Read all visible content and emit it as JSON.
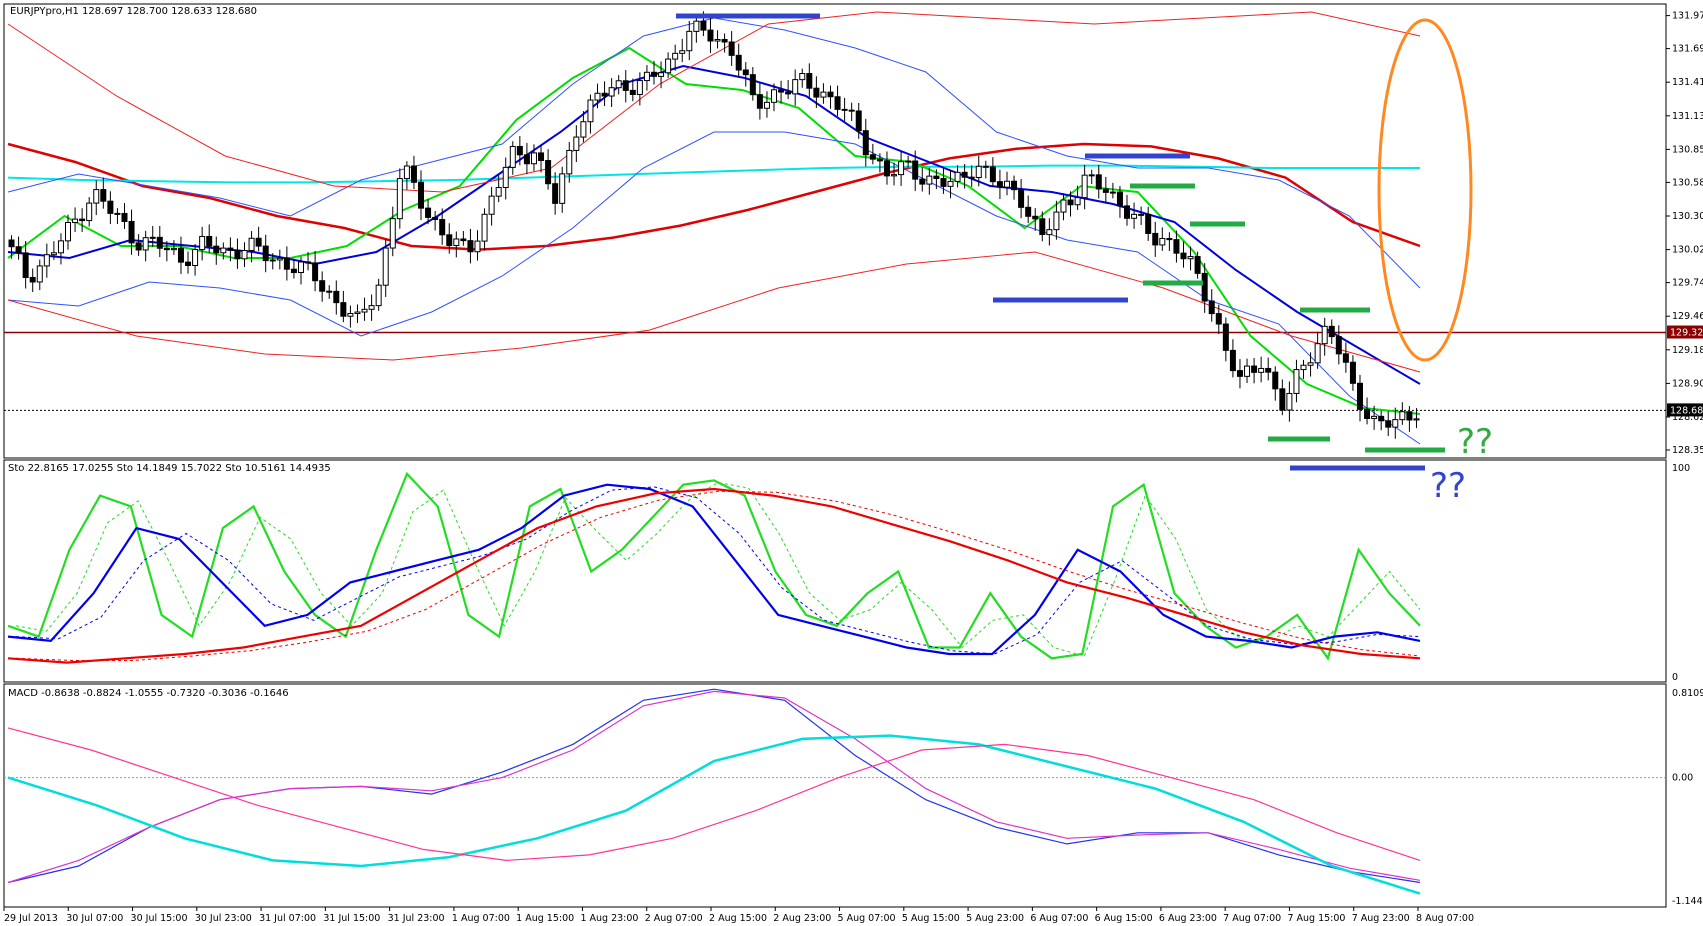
{
  "header": {
    "main": "EURJPYpro,H1  128.697 128.700 128.633 128.680",
    "sto": "Sto 22.8165 17.0255  Sto 14.1849 15.7022  Sto 10.5161 14.4935",
    "macd": "MACD -0.8638 -0.8824 -1.0555 -0.7320 -0.3036 -0.1646"
  },
  "chart_data": [
    {
      "type": "candlestick",
      "symbol": "EURJPYpro",
      "timeframe": "H1",
      "ohlc_last": [
        128.697,
        128.7,
        128.633,
        128.68
      ],
      "ylim": [
        128.3,
        132.05
      ],
      "yticks": [
        "131.970",
        "131.695",
        "131.415",
        "131.135",
        "130.855",
        "130.580",
        "130.300",
        "130.020",
        "129.745",
        "129.465",
        "129.185",
        "128.905",
        "128.625",
        "128.350"
      ],
      "price_levels": [
        {
          "label": "129.329",
          "value": 129.329,
          "color": "#8b0000"
        },
        {
          "label": "128.680",
          "value": 128.68,
          "color": "#000000"
        }
      ],
      "close_path": [
        130.1,
        129.8,
        129.95,
        130.2,
        130.5,
        130.3,
        130.1,
        130.05,
        129.95,
        130.05,
        130.0,
        130.05,
        129.95,
        129.9,
        129.8,
        129.6,
        129.4,
        129.75,
        130.7,
        130.4,
        130.1,
        130.0,
        130.4,
        130.8,
        130.85,
        130.4,
        131.1,
        131.3,
        131.4,
        131.4,
        131.55,
        131.85,
        131.8,
        131.7,
        131.2,
        131.35,
        131.4,
        131.35,
        131.2,
        130.9,
        130.65,
        130.7,
        130.6,
        130.55,
        130.75,
        130.55,
        130.5,
        130.1,
        130.4,
        130.6,
        130.5,
        130.35,
        130.1,
        130.1,
        129.8,
        129.4,
        128.9,
        129.1,
        128.7,
        129.1,
        129.4,
        128.9,
        128.6,
        128.55,
        128.7
      ],
      "indicators": [
        {
          "name": "red-ma-thick",
          "color": "#e00000",
          "values": [
            130.9,
            130.75,
            130.55,
            130.45,
            130.3,
            130.2,
            130.05,
            130.02,
            130.05,
            130.12,
            130.22,
            130.35,
            130.5,
            130.65,
            130.78,
            130.86,
            130.9,
            130.88,
            130.78,
            130.62,
            130.25,
            130.05
          ]
        },
        {
          "name": "cyan-ma",
          "color": "#00e5e5",
          "values": [
            130.62,
            130.6,
            130.59,
            130.58,
            130.58,
            130.59,
            130.6,
            130.62,
            130.64,
            130.66,
            130.68,
            130.7,
            130.71,
            130.71,
            130.72,
            130.72,
            130.71,
            130.7,
            130.7,
            130.7
          ]
        },
        {
          "name": "green-ma",
          "color": "#00dd00",
          "values": [
            129.95,
            130.3,
            130.05,
            130.05,
            129.95,
            129.95,
            130.05,
            130.35,
            130.55,
            131.1,
            131.45,
            131.7,
            131.4,
            131.35,
            131.2,
            130.8,
            130.75,
            130.55,
            130.2,
            130.55,
            130.5,
            130.0,
            129.3,
            128.9,
            128.7,
            128.65
          ]
        },
        {
          "name": "blue-ma",
          "color": "#0000dd",
          "values": [
            130.0,
            129.95,
            130.1,
            130.05,
            130.0,
            129.9,
            130.0,
            130.3,
            130.65,
            131.0,
            131.4,
            131.55,
            131.45,
            131.3,
            130.95,
            130.75,
            130.55,
            130.5,
            130.4,
            130.25,
            129.85,
            129.5,
            129.2,
            128.9
          ]
        },
        {
          "name": "bollinger-blue-upper",
          "color": "#3050ff",
          "values": [
            130.5,
            130.65,
            130.55,
            130.45,
            130.3,
            130.6,
            130.75,
            130.9,
            131.4,
            131.8,
            131.95,
            131.85,
            131.7,
            131.5,
            131.0,
            130.8,
            130.7,
            130.7,
            130.6,
            130.3,
            129.7
          ]
        },
        {
          "name": "bollinger-blue-lower",
          "color": "#3050ff",
          "values": [
            129.6,
            129.55,
            129.75,
            129.7,
            129.6,
            129.3,
            129.5,
            129.8,
            130.2,
            130.7,
            131.0,
            131.0,
            130.9,
            130.6,
            130.3,
            130.1,
            130.0,
            129.6,
            129.4,
            128.8,
            128.4
          ]
        },
        {
          "name": "bollinger-red-upper",
          "color": "#ee2222",
          "values": [
            131.9,
            131.3,
            130.8,
            130.55,
            130.5,
            130.7,
            131.4,
            131.9,
            132.0,
            131.95,
            131.9,
            131.95,
            132.0,
            131.8
          ]
        },
        {
          "name": "bollinger-red-lower",
          "color": "#ee2222",
          "values": [
            129.6,
            129.3,
            129.15,
            129.1,
            129.2,
            129.35,
            129.7,
            129.9,
            130.0,
            129.7,
            129.3,
            129.0
          ]
        }
      ]
    },
    {
      "type": "line",
      "name": "Stochastic",
      "ylim": [
        0,
        100
      ],
      "yticks": [
        "100",
        "0"
      ],
      "series": [
        {
          "name": "green-sto",
          "color": "#22dd22",
          "values": [
            25,
            20,
            60,
            85,
            80,
            30,
            20,
            70,
            80,
            50,
            30,
            20,
            60,
            95,
            80,
            30,
            20,
            80,
            88,
            50,
            60,
            75,
            90,
            92,
            85,
            50,
            30,
            25,
            40,
            50,
            15,
            15,
            40,
            20,
            10,
            12,
            80,
            90,
            40,
            25,
            15,
            20,
            30,
            10,
            60,
            40,
            25
          ]
        },
        {
          "name": "blue-sto",
          "color": "#0000ee",
          "values": [
            20,
            18,
            40,
            70,
            65,
            45,
            25,
            30,
            45,
            50,
            55,
            60,
            70,
            85,
            90,
            88,
            80,
            55,
            30,
            25,
            20,
            15,
            12,
            12,
            30,
            60,
            50,
            30,
            20,
            18,
            15,
            20,
            22,
            18
          ]
        },
        {
          "name": "red-sto-slow",
          "color": "#ee0000",
          "values": [
            10,
            8,
            10,
            12,
            15,
            20,
            25,
            40,
            55,
            70,
            80,
            86,
            88,
            85,
            80,
            72,
            64,
            55,
            45,
            38,
            30,
            22,
            16,
            12,
            10
          ]
        }
      ]
    },
    {
      "type": "line",
      "name": "MACD",
      "ylim": [
        -1.1444,
        0.8109
      ],
      "yticks": [
        "0.8109",
        "0.00",
        "-1.1444"
      ],
      "series": [
        {
          "name": "macd-blue",
          "color": "#2233ee",
          "values": [
            -0.95,
            -0.8,
            -0.45,
            -0.2,
            -0.1,
            -0.08,
            -0.15,
            0.05,
            0.3,
            0.7,
            0.8,
            0.7,
            0.2,
            -0.2,
            -0.45,
            -0.6,
            -0.5,
            -0.5,
            -0.7,
            -0.85,
            -0.95
          ]
        },
        {
          "name": "macd-magenta",
          "color": "#dd33cc",
          "values": [
            -0.95,
            -0.75,
            -0.45,
            -0.2,
            -0.1,
            -0.08,
            -0.12,
            0.0,
            0.25,
            0.65,
            0.78,
            0.72,
            0.35,
            -0.1,
            -0.4,
            -0.55,
            -0.52,
            -0.5,
            -0.65,
            -0.82,
            -0.93
          ]
        },
        {
          "name": "macd-cyan",
          "color": "#00dddd",
          "values": [
            0.0,
            -0.25,
            -0.55,
            -0.75,
            -0.8,
            -0.72,
            -0.55,
            -0.3,
            0.15,
            0.35,
            0.38,
            0.3,
            0.1,
            -0.1,
            -0.4,
            -0.8,
            -1.05
          ]
        },
        {
          "name": "macd-pink",
          "color": "#ff3399",
          "values": [
            0.45,
            0.25,
            0.0,
            -0.25,
            -0.45,
            -0.65,
            -0.75,
            -0.7,
            -0.55,
            -0.3,
            0.0,
            0.25,
            0.3,
            0.2,
            0.0,
            -0.2,
            -0.5,
            -0.75
          ]
        }
      ]
    }
  ],
  "xaxis": [
    "29 Jul 2013",
    "30 Jul 07:00",
    "30 Jul 15:00",
    "30 Jul 23:00",
    "31 Jul 07:00",
    "31 Jul 15:00",
    "31 Jul 23:00",
    "1 Aug 07:00",
    "1 Aug 15:00",
    "1 Aug 23:00",
    "2 Aug 07:00",
    "2 Aug 15:00",
    "2 Aug 23:00",
    "5 Aug 07:00",
    "5 Aug 15:00",
    "5 Aug 23:00",
    "6 Aug 07:00",
    "6 Aug 15:00",
    "6 Aug 23:00",
    "7 Aug 07:00",
    "7 Aug 15:00",
    "7 Aug 23:00",
    "8 Aug 07:00"
  ],
  "annotations": {
    "green_q": "??",
    "blue_q": "??"
  },
  "colors": {
    "grid": "#000000",
    "bull": "#ffffff",
    "bear": "#000000"
  }
}
